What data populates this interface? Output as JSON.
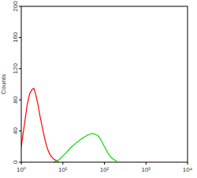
{
  "chart_data": {
    "type": "line",
    "y_label": "Counts",
    "log": "x",
    "xlim": [
      1,
      10000
    ],
    "xticks": [
      {
        "value": 1,
        "label": "10⁰"
      },
      {
        "value": 10,
        "label": "10¹"
      },
      {
        "value": 100,
        "label": "10²"
      },
      {
        "value": 1000,
        "label": "10³"
      },
      {
        "value": 10000,
        "label": "10⁴"
      }
    ],
    "ylim": [
      0,
      200
    ],
    "yticks": [
      0,
      40,
      80,
      120,
      160,
      200
    ],
    "grid": false,
    "series": [
      {
        "color": "#ff0000",
        "x": [
          1,
          1.2,
          1.4,
          1.6,
          1.8,
          2,
          2.2,
          2.5,
          2.8,
          3.2,
          3.6,
          4,
          4.5,
          5,
          6,
          7,
          8
        ],
        "values": [
          20,
          50,
          75,
          88,
          93,
          95,
          88,
          75,
          60,
          45,
          32,
          22,
          14,
          9,
          4,
          2,
          0
        ]
      },
      {
        "color": "#00dd00",
        "x": [
          6,
          8,
          10,
          12,
          15,
          20,
          25,
          30,
          40,
          50,
          60,
          70,
          80,
          100,
          120,
          150,
          200
        ],
        "values": [
          0,
          3,
          8,
          12,
          18,
          24,
          28,
          31,
          35,
          37,
          36,
          34,
          30,
          20,
          12,
          5,
          1
        ]
      }
    ]
  }
}
